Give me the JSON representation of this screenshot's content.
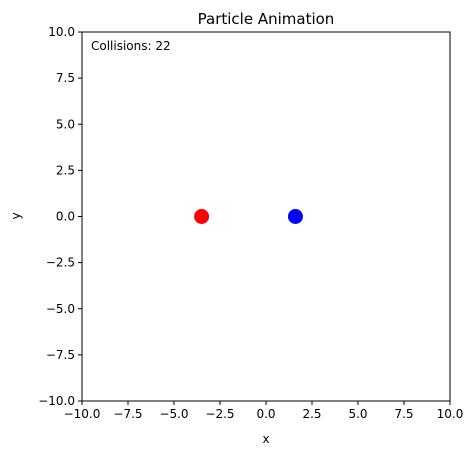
{
  "chart_data": {
    "type": "scatter",
    "title": "Particle Animation",
    "xlabel": "x",
    "ylabel": "y",
    "xlim": [
      -10,
      10
    ],
    "ylim": [
      -10,
      10
    ],
    "grid": false,
    "x_ticks": [
      -10,
      -7.5,
      -5,
      -2.5,
      0,
      2.5,
      5,
      7.5,
      10
    ],
    "y_ticks": [
      -10,
      -7.5,
      -5,
      -2.5,
      0,
      2.5,
      5,
      7.5,
      10
    ],
    "x_tick_labels": [
      "−10.0",
      "−7.5",
      "−5.0",
      "−2.5",
      "0.0",
      "2.5",
      "5.0",
      "7.5",
      "10.0"
    ],
    "y_tick_labels": [
      "−10.0",
      "−7.5",
      "−5.0",
      "−2.5",
      "0.0",
      "2.5",
      "5.0",
      "7.5",
      "10.0"
    ],
    "annotation": "Collisions: 22",
    "points": [
      {
        "x": -3.5,
        "y": 0.0,
        "color": "#ff0000"
      },
      {
        "x": 1.6,
        "y": 0.0,
        "color": "#0000ff"
      }
    ]
  }
}
